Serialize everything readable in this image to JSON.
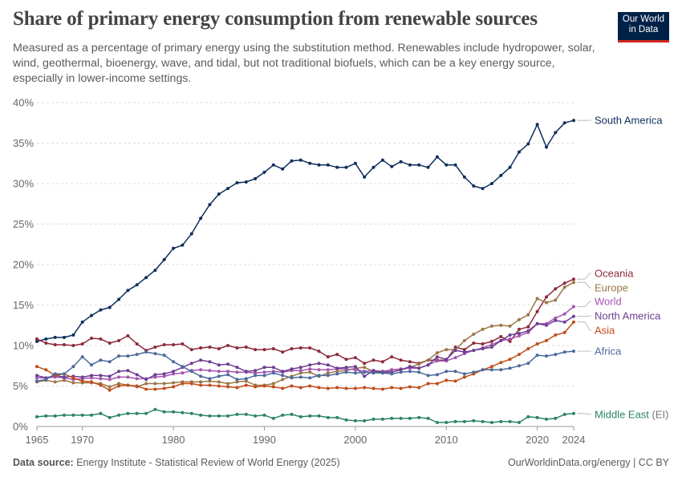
{
  "header": {
    "title": "Share of primary energy consumption from renewable sources",
    "subtitle": "Measured as a percentage of primary energy using the substitution method. Renewables include hydropower, solar, wind, geothermal, bioenergy, wave, and tidal, but not traditional biofuels, which can be a key energy source, especially in lower-income settings."
  },
  "logo": {
    "line1": "Our World",
    "line2": "in Data"
  },
  "footer": {
    "source_label": "Data source:",
    "source_text": "Energy Institute - Statistical Review of World Energy (2025)",
    "right_text": "OurWorldinData.org/energy | CC BY"
  },
  "colors": {
    "south_america": "#0e2e5c",
    "oceania": "#8c2a3c",
    "europe": "#9a7646",
    "world": "#a555b1",
    "north_america": "#6d3e91",
    "asia": "#c04c1a",
    "africa": "#4c6a9c",
    "middle_east": "#2b8465",
    "grid": "#dddddd",
    "axis_text": "#666666"
  },
  "chart_data": {
    "type": "line",
    "title": "Share of primary energy consumption from renewable sources",
    "xlabel": "",
    "ylabel": "",
    "xlim": [
      1965,
      2024
    ],
    "ylim": [
      0,
      40
    ],
    "x_ticks": [
      1965,
      1970,
      1980,
      1990,
      2000,
      2010,
      2020,
      2024
    ],
    "y_ticks": [
      0,
      5,
      10,
      15,
      20,
      25,
      30,
      35,
      40
    ],
    "y_tick_labels": [
      "0%",
      "5%",
      "10%",
      "15%",
      "20%",
      "25%",
      "30%",
      "35%",
      "40%"
    ],
    "grid": true,
    "legend": "right, inline end labels",
    "x": [
      1965,
      1966,
      1967,
      1968,
      1969,
      1970,
      1971,
      1972,
      1973,
      1974,
      1975,
      1976,
      1977,
      1978,
      1979,
      1980,
      1981,
      1982,
      1983,
      1984,
      1985,
      1986,
      1987,
      1988,
      1989,
      1990,
      1991,
      1992,
      1993,
      1994,
      1995,
      1996,
      1997,
      1998,
      1999,
      2000,
      2001,
      2002,
      2003,
      2004,
      2005,
      2006,
      2007,
      2008,
      2009,
      2010,
      2011,
      2012,
      2013,
      2014,
      2015,
      2016,
      2017,
      2018,
      2019,
      2020,
      2021,
      2022,
      2023,
      2024
    ],
    "series": [
      {
        "key": "south_america",
        "name": "South America",
        "values": [
          10.5,
          10.8,
          11.0,
          11.0,
          11.3,
          12.9,
          13.7,
          14.4,
          14.7,
          15.7,
          16.8,
          17.5,
          18.4,
          19.3,
          20.6,
          22.0,
          22.4,
          23.8,
          25.7,
          27.4,
          28.7,
          29.4,
          30.1,
          30.2,
          30.6,
          31.4,
          32.3,
          31.8,
          32.8,
          32.9,
          32.5,
          32.3,
          32.3,
          32.0,
          32.0,
          32.5,
          30.8,
          32.0,
          32.9,
          32.1,
          32.7,
          32.3,
          32.3,
          32.0,
          33.3,
          32.3,
          32.3,
          30.8,
          29.7,
          29.4,
          30.0,
          31.0,
          32.0,
          33.9,
          34.9,
          37.3,
          34.5,
          36.3,
          37.5,
          37.8
        ]
      },
      {
        "key": "oceania",
        "name": "Oceania",
        "values": [
          10.8,
          10.3,
          10.1,
          10.1,
          10.0,
          10.2,
          10.9,
          10.8,
          10.3,
          10.6,
          11.2,
          10.2,
          9.4,
          9.8,
          10.1,
          10.1,
          10.2,
          9.5,
          9.7,
          9.8,
          9.6,
          10.0,
          9.7,
          9.8,
          9.5,
          9.5,
          9.6,
          9.2,
          9.6,
          9.7,
          9.7,
          9.3,
          8.6,
          8.9,
          8.3,
          8.5,
          7.8,
          8.2,
          8.0,
          8.6,
          8.2,
          8.0,
          7.8,
          8.2,
          8.2,
          8.2,
          9.8,
          9.5,
          10.3,
          10.2,
          10.5,
          11.1,
          10.5,
          12.0,
          12.3,
          14.2,
          16.0,
          17.0,
          17.7,
          18.2
        ]
      },
      {
        "key": "europe",
        "name": "Europe",
        "values": [
          5.5,
          5.7,
          5.5,
          5.7,
          5.4,
          5.4,
          5.4,
          5.3,
          4.9,
          5.3,
          5.1,
          4.9,
          5.3,
          5.3,
          5.3,
          5.4,
          5.5,
          5.5,
          5.5,
          5.6,
          5.5,
          5.3,
          5.5,
          5.6,
          5.1,
          5.1,
          5.3,
          5.8,
          6.2,
          6.6,
          6.7,
          6.2,
          6.6,
          6.8,
          6.9,
          7.2,
          7.3,
          6.8,
          6.6,
          7.0,
          7.0,
          7.3,
          7.7,
          8.2,
          9.1,
          9.5,
          9.5,
          10.6,
          11.4,
          12.0,
          12.4,
          12.5,
          12.4,
          13.2,
          13.8,
          15.8,
          15.3,
          15.6,
          17.2,
          17.8
        ]
      },
      {
        "key": "world",
        "name": "World",
        "values": [
          6.0,
          6.0,
          6.1,
          6.0,
          5.8,
          5.9,
          6.0,
          5.9,
          5.8,
          6.1,
          6.1,
          5.9,
          5.9,
          6.1,
          6.2,
          6.5,
          6.6,
          6.9,
          7.0,
          6.9,
          6.8,
          6.8,
          6.7,
          6.7,
          6.6,
          6.7,
          6.8,
          6.7,
          6.9,
          6.9,
          7.1,
          7.0,
          7.0,
          7.1,
          7.1,
          7.0,
          6.8,
          6.9,
          6.8,
          7.0,
          7.1,
          7.2,
          7.2,
          7.6,
          8.1,
          8.1,
          8.5,
          9.0,
          9.4,
          9.7,
          10.1,
          10.6,
          10.8,
          11.2,
          11.6,
          12.7,
          12.7,
          13.4,
          13.9,
          14.8
        ]
      },
      {
        "key": "north_america",
        "name": "North America",
        "values": [
          6.3,
          6.0,
          6.3,
          6.1,
          6.2,
          6.1,
          6.3,
          6.3,
          6.2,
          6.8,
          6.9,
          6.4,
          5.8,
          6.4,
          6.5,
          6.8,
          7.3,
          7.8,
          8.2,
          8.0,
          7.6,
          7.7,
          7.3,
          6.8,
          6.9,
          7.3,
          7.3,
          6.8,
          7.1,
          7.3,
          7.6,
          7.8,
          7.6,
          7.2,
          7.3,
          7.4,
          6.2,
          6.9,
          6.7,
          6.7,
          7.0,
          7.4,
          7.2,
          7.6,
          8.6,
          8.3,
          9.4,
          9.2,
          9.4,
          9.6,
          9.8,
          10.6,
          11.3,
          11.5,
          11.8,
          12.7,
          12.5,
          13.1,
          12.9,
          13.6
        ]
      },
      {
        "key": "asia",
        "name": "Asia",
        "values": [
          7.4,
          7.0,
          6.3,
          6.5,
          6.0,
          5.6,
          5.5,
          5.1,
          4.5,
          5.0,
          5.1,
          5.0,
          4.6,
          4.6,
          4.7,
          4.9,
          5.3,
          5.3,
          5.1,
          5.1,
          5.0,
          4.9,
          4.8,
          5.1,
          4.9,
          5.0,
          4.9,
          4.7,
          5.0,
          4.8,
          5.0,
          4.8,
          4.7,
          4.8,
          4.7,
          4.7,
          4.8,
          4.7,
          4.6,
          4.8,
          4.7,
          4.9,
          4.8,
          5.3,
          5.3,
          5.7,
          5.6,
          6.1,
          6.5,
          7.0,
          7.4,
          7.9,
          8.3,
          8.9,
          9.6,
          10.2,
          10.6,
          11.3,
          11.6,
          12.9
        ]
      },
      {
        "key": "africa",
        "name": "Africa",
        "values": [
          5.6,
          5.8,
          6.5,
          6.5,
          7.4,
          8.6,
          7.6,
          8.2,
          8.0,
          8.7,
          8.7,
          8.9,
          9.2,
          9.0,
          8.8,
          8.0,
          7.4,
          6.8,
          6.2,
          5.9,
          6.2,
          6.4,
          5.8,
          5.9,
          6.3,
          6.3,
          6.6,
          6.3,
          6.0,
          6.1,
          6.0,
          6.3,
          6.3,
          6.5,
          6.7,
          6.6,
          6.7,
          6.6,
          6.6,
          6.5,
          6.7,
          6.8,
          6.7,
          6.3,
          6.4,
          6.8,
          6.8,
          6.5,
          6.7,
          7.0,
          7.0,
          7.0,
          7.2,
          7.5,
          7.8,
          8.8,
          8.7,
          8.9,
          9.2,
          9.3
        ]
      },
      {
        "key": "middle_east",
        "name": "Middle East",
        "name_suffix": " (EI)",
        "values": [
          1.2,
          1.3,
          1.3,
          1.4,
          1.4,
          1.4,
          1.4,
          1.6,
          1.1,
          1.4,
          1.6,
          1.6,
          1.6,
          2.1,
          1.8,
          1.8,
          1.7,
          1.6,
          1.4,
          1.3,
          1.3,
          1.3,
          1.5,
          1.5,
          1.3,
          1.4,
          1.0,
          1.4,
          1.5,
          1.2,
          1.3,
          1.3,
          1.1,
          1.1,
          0.8,
          0.7,
          0.7,
          0.9,
          0.9,
          1.0,
          1.0,
          1.0,
          1.1,
          1.0,
          0.5,
          0.5,
          0.6,
          0.6,
          0.7,
          0.6,
          0.5,
          0.6,
          0.6,
          0.5,
          1.2,
          1.1,
          0.9,
          1.0,
          1.5,
          1.6
        ]
      }
    ]
  }
}
